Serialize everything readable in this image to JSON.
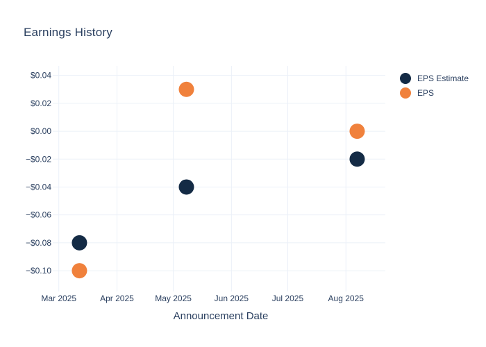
{
  "chart_data": {
    "type": "scatter",
    "title": "Earnings History",
    "xlabel": "Announcement Date",
    "ylabel": "",
    "background_color": "#ffffff",
    "text_color": "#2a3f5f",
    "grid_color": "#ebf0f8",
    "grid": true,
    "legend_position": "right",
    "marker_radius": 11,
    "x_axis": {
      "range": [
        "2025-02-28",
        "2025-08-22"
      ],
      "ticks": [
        {
          "label": "Mar 2025",
          "date": "2025-03-01"
        },
        {
          "label": "Apr 2025",
          "date": "2025-04-01"
        },
        {
          "label": "May 2025",
          "date": "2025-05-01"
        },
        {
          "label": "Jun 2025",
          "date": "2025-06-01"
        },
        {
          "label": "Jul 2025",
          "date": "2025-07-01"
        },
        {
          "label": "Aug 2025",
          "date": "2025-08-01"
        }
      ]
    },
    "y_axis": {
      "range": [
        -0.1129,
        0.0468
      ],
      "ticks": [
        {
          "label": "$0.04",
          "value": 0.04
        },
        {
          "label": "$0.02",
          "value": 0.02
        },
        {
          "label": "$0.00",
          "value": 0.0
        },
        {
          "label": "−$0.02",
          "value": -0.02
        },
        {
          "label": "−$0.04",
          "value": -0.04
        },
        {
          "label": "−$0.06",
          "value": -0.06
        },
        {
          "label": "−$0.08",
          "value": -0.08
        },
        {
          "label": "−$0.10",
          "value": -0.1
        }
      ]
    },
    "series": [
      {
        "name": "EPS Estimate",
        "color": "#142b45",
        "points": [
          {
            "date": "2025-03-12",
            "eps": -0.08
          },
          {
            "date": "2025-05-08",
            "eps": -0.04
          },
          {
            "date": "2025-08-07",
            "eps": -0.02
          }
        ]
      },
      {
        "name": "EPS",
        "color": "#f0813c",
        "points": [
          {
            "date": "2025-03-12",
            "eps": -0.1
          },
          {
            "date": "2025-05-08",
            "eps": 0.03
          },
          {
            "date": "2025-08-07",
            "eps": 0.0
          }
        ]
      }
    ]
  }
}
